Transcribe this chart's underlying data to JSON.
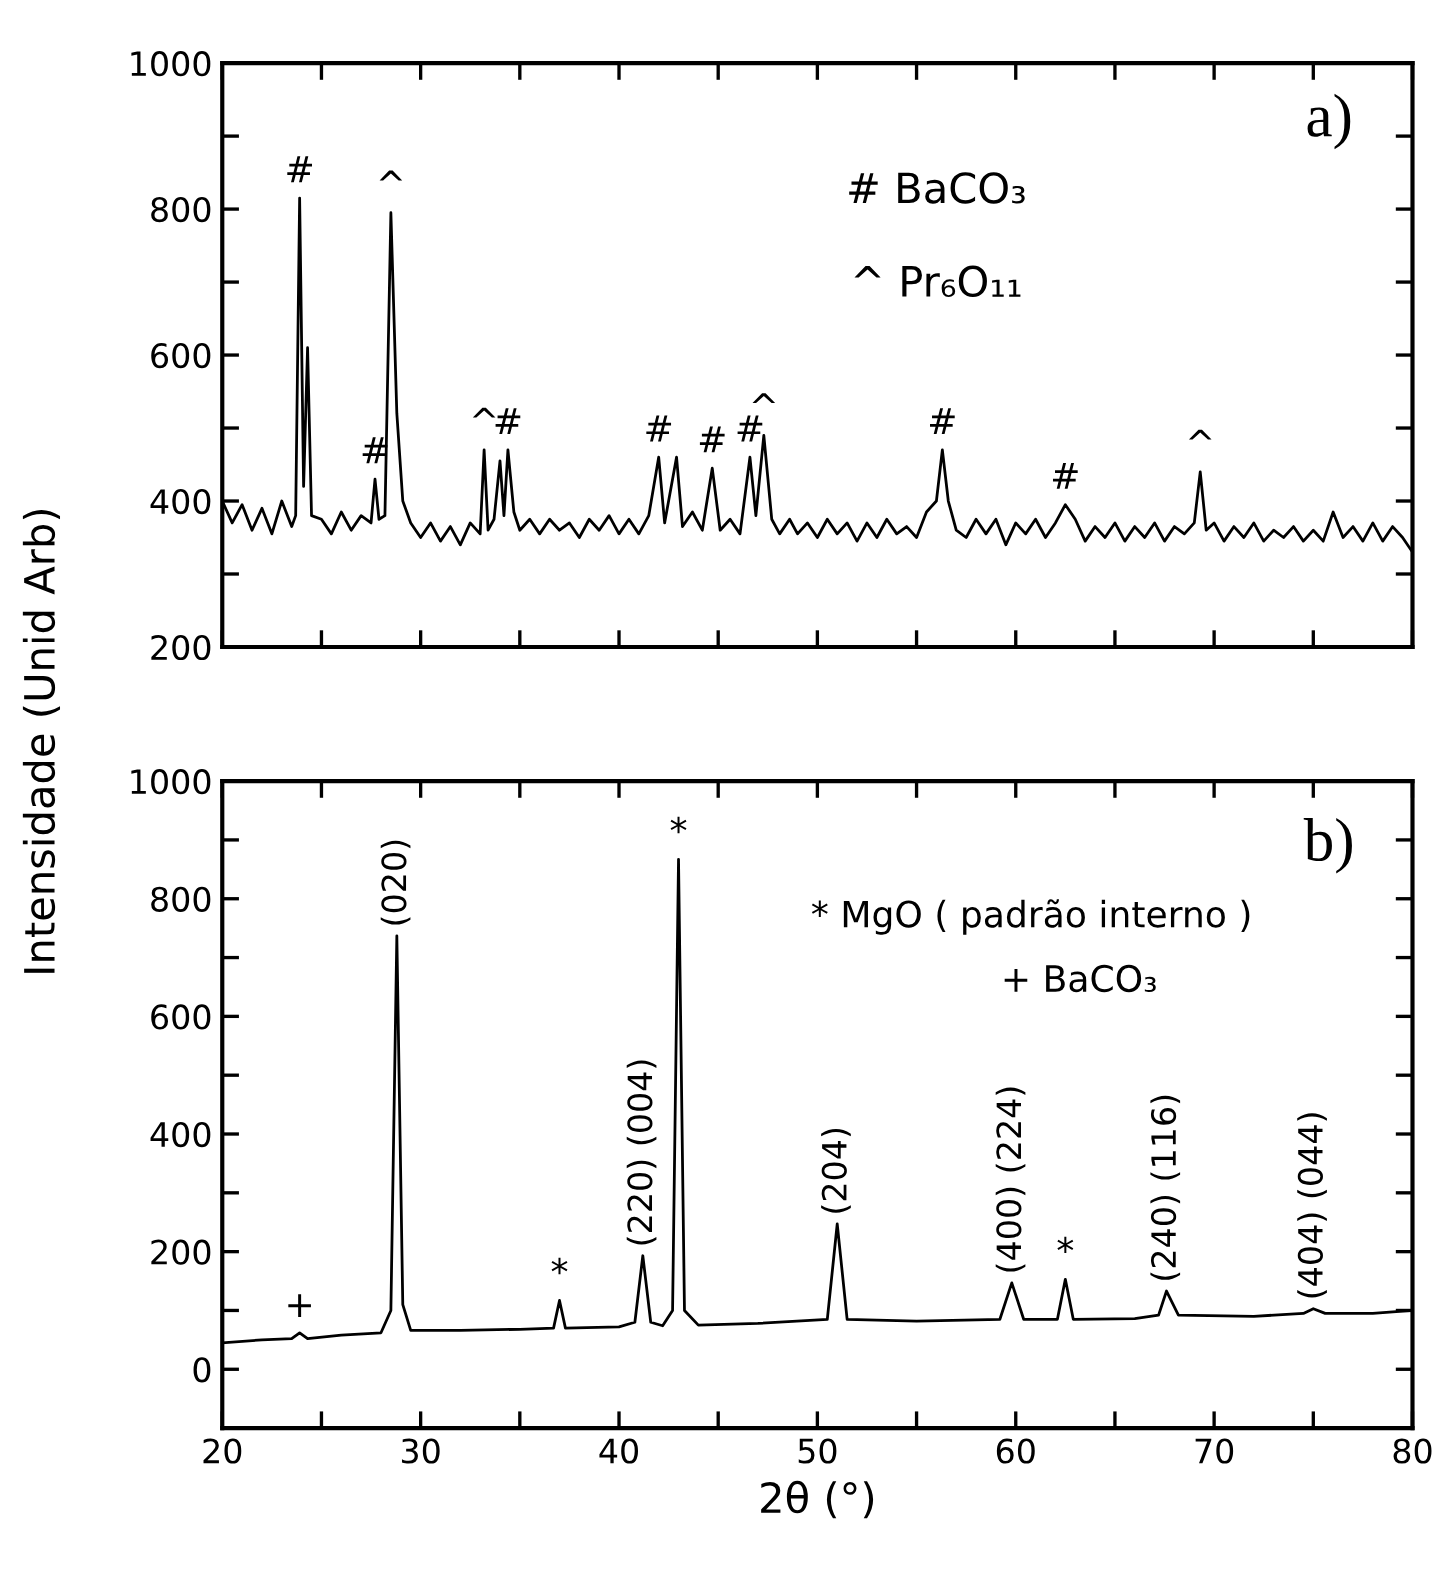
{
  "chart_data": [
    {
      "type": "line",
      "ylabel": "Intensidade (Unid Arb)",
      "xlim": [
        20,
        80
      ],
      "ylim": [
        200,
        1000
      ],
      "tick_labels": "y",
      "xticks": [
        20,
        {
          "value": 25,
          "label": null
        },
        30,
        {
          "value": 35,
          "label": null
        },
        40,
        {
          "value": 45,
          "label": null
        },
        50,
        {
          "value": 55,
          "label": null
        },
        60,
        {
          "value": 65,
          "label": null
        },
        70,
        {
          "value": 75,
          "label": null
        },
        80
      ],
      "yticks": [
        200,
        {
          "value": 300,
          "label": null
        },
        400,
        {
          "value": 500,
          "label": null
        },
        600,
        {
          "value": 700,
          "label": null
        },
        800,
        {
          "value": 900,
          "label": null
        },
        1000
      ],
      "grid": false,
      "legend": false,
      "marker": "none",
      "line_style": "solid",
      "series": [
        {
          "color": "#000000",
          "x": [
            20,
            20.5,
            21,
            21.5,
            22,
            22.5,
            23,
            23.5,
            23.7,
            23.9,
            24.1,
            24.3,
            24.5,
            25,
            25.5,
            26,
            26.5,
            27,
            27.5,
            27.7,
            27.9,
            28.2,
            28.5,
            28.8,
            29.1,
            29.5,
            30,
            30.5,
            31,
            31.5,
            32,
            32.5,
            33,
            33.2,
            33.4,
            33.7,
            34.0,
            34.2,
            34.4,
            34.7,
            35,
            35.5,
            36,
            36.5,
            37,
            37.5,
            38,
            38.5,
            39,
            39.5,
            40,
            40.5,
            41,
            41.5,
            42,
            42.3,
            42.9,
            43.2,
            43.7,
            44.2,
            44.7,
            45.1,
            45.6,
            46.1,
            46.6,
            46.9,
            47.3,
            47.7,
            48.1,
            48.6,
            49,
            49.5,
            50,
            50.5,
            51,
            51.5,
            52,
            52.5,
            53,
            53.5,
            54,
            54.5,
            55,
            55.5,
            56,
            56.3,
            56.6,
            57,
            57.5,
            58,
            58.5,
            59,
            59.5,
            60,
            60.5,
            61,
            61.5,
            62,
            62.5,
            63,
            63.5,
            64,
            64.5,
            65,
            65.5,
            66,
            66.5,
            67,
            67.5,
            68,
            68.5,
            69,
            69.3,
            69.6,
            70,
            70.5,
            71,
            71.5,
            72,
            72.5,
            73,
            73.5,
            74,
            74.5,
            75,
            75.5,
            76,
            76.5,
            77,
            77.5,
            78,
            78.5,
            79,
            79.5,
            80
          ],
          "values": [
            400,
            370,
            395,
            360,
            390,
            355,
            400,
            365,
            380,
            815,
            420,
            610,
            380,
            375,
            355,
            385,
            360,
            380,
            370,
            430,
            375,
            380,
            795,
            520,
            400,
            370,
            350,
            370,
            345,
            365,
            340,
            370,
            355,
            470,
            360,
            375,
            455,
            380,
            470,
            385,
            360,
            375,
            355,
            375,
            360,
            370,
            350,
            375,
            360,
            380,
            355,
            375,
            355,
            380,
            460,
            370,
            460,
            365,
            385,
            360,
            445,
            360,
            375,
            355,
            460,
            380,
            490,
            375,
            355,
            375,
            355,
            370,
            350,
            375,
            355,
            370,
            345,
            370,
            350,
            375,
            355,
            365,
            350,
            385,
            400,
            470,
            400,
            360,
            350,
            375,
            355,
            375,
            340,
            370,
            355,
            375,
            350,
            370,
            395,
            375,
            345,
            365,
            350,
            370,
            345,
            365,
            350,
            370,
            345,
            365,
            355,
            370,
            440,
            360,
            370,
            345,
            365,
            350,
            370,
            345,
            360,
            350,
            365,
            345,
            360,
            345,
            385,
            350,
            365,
            345,
            370,
            345,
            365,
            350,
            330
          ]
        }
      ],
      "annotations": [
        "a)",
        "# BaCO₃",
        "^ Pr₆O₁₁",
        {
          "text": "#",
          "x": 23.9,
          "y": 815
        },
        {
          "text": "^",
          "x": 28.5,
          "y": 795
        },
        {
          "text": "#",
          "x": 27.7,
          "y": 430
        },
        {
          "text": "^",
          "x": 33.2,
          "y": 470
        },
        {
          "text": "#",
          "x": 34.4,
          "y": 470
        },
        {
          "text": "#",
          "x": 42.0,
          "y": 460
        },
        {
          "text": "#",
          "x": 44.7,
          "y": 445
        },
        {
          "text": "#",
          "x": 46.6,
          "y": 460
        },
        {
          "text": "^",
          "x": 47.3,
          "y": 490
        },
        {
          "text": "#",
          "x": 56.3,
          "y": 470
        },
        {
          "text": "#",
          "x": 62.5,
          "y": 395
        },
        {
          "text": "^",
          "x": 69.3,
          "y": 440
        }
      ]
    },
    {
      "type": "line",
      "xlabel": "2θ (°)",
      "xlim": [
        20,
        80
      ],
      "ylim": [
        -100,
        1000
      ],
      "xticks": [
        20,
        {
          "value": 25,
          "label": null
        },
        30,
        {
          "value": 35,
          "label": null
        },
        40,
        {
          "value": 45,
          "label": null
        },
        50,
        {
          "value": 55,
          "label": null
        },
        60,
        {
          "value": 65,
          "label": null
        },
        70,
        {
          "value": 75,
          "label": null
        },
        80
      ],
      "yticks": [
        0,
        {
          "value": 100,
          "label": null
        },
        200,
        {
          "value": 300,
          "label": null
        },
        400,
        {
          "value": 500,
          "label": null
        },
        600,
        {
          "value": 700,
          "label": null
        },
        800,
        {
          "value": 900,
          "label": null
        },
        1000
      ],
      "grid": false,
      "legend": false,
      "marker": "none",
      "line_style": "solid",
      "series": [
        {
          "color": "#000000",
          "x": [
            20,
            22,
            23.5,
            23.9,
            24.3,
            26,
            28,
            28.5,
            28.8,
            29.1,
            29.5,
            32,
            35,
            36.7,
            37.0,
            37.3,
            40,
            40.8,
            41.2,
            41.6,
            42.2,
            42.7,
            43.0,
            43.3,
            44,
            47,
            50.5,
            51.0,
            51.5,
            55,
            59.2,
            59.8,
            60.4,
            62.1,
            62.5,
            62.9,
            66,
            67.2,
            67.6,
            68.2,
            72,
            74.5,
            75,
            75.6,
            78,
            80
          ],
          "values": [
            45,
            50,
            52,
            62,
            52,
            58,
            62,
            100,
            737,
            110,
            66,
            66,
            68,
            70,
            117,
            70,
            72,
            80,
            193,
            80,
            74,
            100,
            867,
            100,
            75,
            78,
            85,
            247,
            85,
            82,
            85,
            147,
            85,
            85,
            153,
            85,
            86,
            92,
            133,
            92,
            90,
            95,
            103,
            95,
            95,
            100
          ]
        }
      ],
      "annotations": [
        "b)",
        "* MgO ( padrão interno )",
        "+ BaCO₃",
        {
          "text": "+",
          "x": 23.9,
          "y": 62
        },
        {
          "text": "(020)",
          "x": 28.8,
          "y": 737
        },
        {
          "text": "*",
          "x": 37.0,
          "y": 117
        },
        {
          "text": "(220) (004)",
          "x": 41.2,
          "y": 193
        },
        {
          "text": "*",
          "x": 43.0,
          "y": 867
        },
        {
          "text": "(204)",
          "x": 51.0,
          "y": 247
        },
        {
          "text": "(400) (224)",
          "x": 59.8,
          "y": 147
        },
        {
          "text": "*",
          "x": 62.5,
          "y": 153
        },
        {
          "text": "(240) (116)",
          "x": 67.6,
          "y": 133
        },
        {
          "text": "(404) (044)",
          "x": 75.0,
          "y": 103
        }
      ]
    }
  ]
}
